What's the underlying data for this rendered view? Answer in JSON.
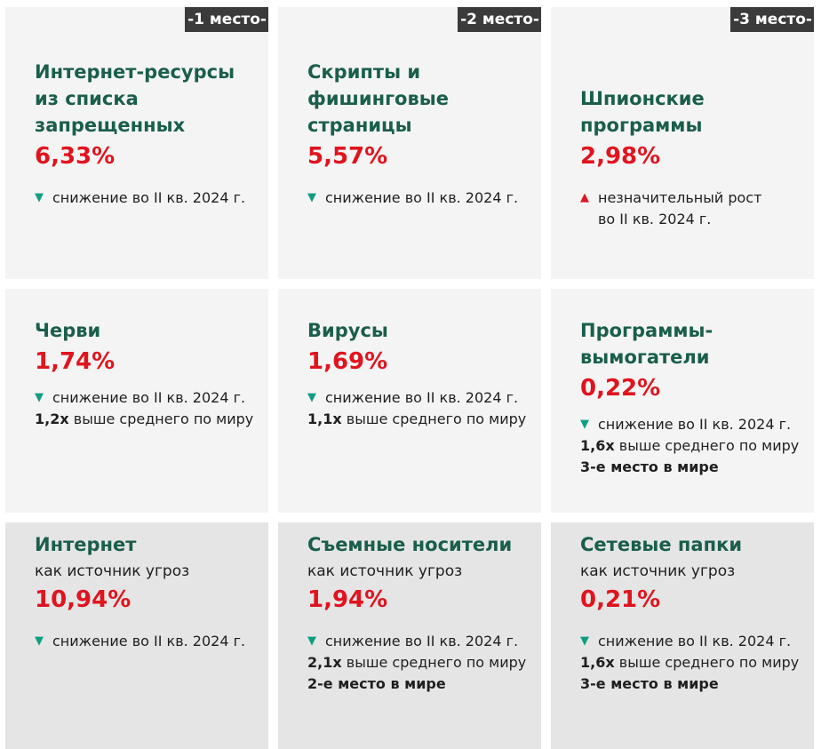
{
  "ranks": [
    "-1 место-",
    "-2 место-",
    "-3 место-"
  ],
  "cards": [
    {
      "title": "Интернет-ресурсы\nиз списка\nзапрещенных",
      "value": "6,33%",
      "trend": "снижение во II кв. 2024 г."
    },
    {
      "title": "Скрипты и\nфишинговые\nстраницы",
      "value": "5,57%",
      "trend": "снижение во II кв. 2024 г."
    },
    {
      "title": "Шпионские\nпрограммы",
      "value": "2,98%",
      "trend": "незначительный рост\nво II кв. 2024 г."
    },
    {
      "title": "Черви",
      "value": "1,74%",
      "trend": "снижение во II кв. 2024 г.",
      "multiplier": "1,2x",
      "multiplier_text": "выше среднего по миру"
    },
    {
      "title": "Вирусы",
      "value": "1,69%",
      "trend": "снижение во II кв. 2024 г.",
      "multiplier": "1,1x",
      "multiplier_text": "выше среднего по миру"
    },
    {
      "title": "Программы-\nвымогатели",
      "value": "0,22%",
      "trend": "снижение во II кв. 2024 г.",
      "multiplier": "1,6x",
      "multiplier_text": "выше среднего по миру",
      "rank_text": "3-е место в мире"
    },
    {
      "title": "Интернет",
      "subtitle": "как источник угроз",
      "value": "10,94%",
      "trend": "снижение во II кв. 2024 г."
    },
    {
      "title": "Съемные носители",
      "subtitle": "как источник угроз",
      "value": "1,94%",
      "trend": "снижение во II кв. 2024 г.",
      "multiplier": "2,1x",
      "multiplier_text": "выше среднего по миру",
      "rank_text": "2-е место в мире"
    },
    {
      "title": "Сетевые папки",
      "subtitle": "как источник угроз",
      "value": "0,21%",
      "trend": "снижение во II кв. 2024 г.",
      "multiplier": "1,6x",
      "multiplier_text": "выше среднего по миру",
      "rank_text": "3-е место в мире"
    }
  ],
  "icons": {
    "trend_down": "triangle-down-icon",
    "trend_up": "triangle-up-icon"
  },
  "colors": {
    "title": "#1a5e4c",
    "value": "#e0141e",
    "trend_down": "#0e9e86",
    "trend_up": "#e0141e",
    "rank_badge": "#3b3b3b"
  }
}
